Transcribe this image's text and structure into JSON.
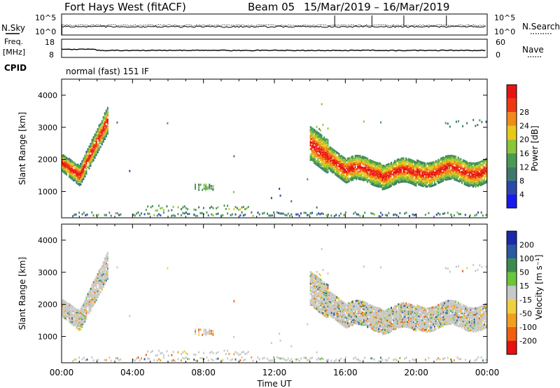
{
  "header": {
    "station": "Fort Hays West (fitACF)",
    "beam": "Beam 05",
    "dates": "15/Mar/2019 – 16/Mar/2019"
  },
  "strip1": {
    "left_label": "N.Sky",
    "left_ticks": [
      "10^5",
      "10^0"
    ],
    "right_label": "N.Search",
    "right_ticks": [
      "10^5",
      "10^0"
    ]
  },
  "strip2": {
    "left_label_top": "Freq.",
    "left_label_unit": "[MHz]",
    "left_ticks": [
      "18",
      "8"
    ],
    "right_label": "Nave",
    "right_ticks": [
      "60",
      "0"
    ]
  },
  "cpid": {
    "label": "CPID",
    "mode": "normal (fast) 151 IF"
  },
  "colors": {
    "power": [
      "#1a1aee",
      "#2a4aa8",
      "#3c7a6c",
      "#4a9a52",
      "#8cc43a",
      "#e8c81a",
      "#f08a1a",
      "#ee3a12",
      "#e81414"
    ],
    "velocity": [
      "#1a2aa8",
      "#2a5aa0",
      "#3c8a50",
      "#6ac63a",
      "#c8c8c8",
      "#f0d040",
      "#f0a020",
      "#f06010",
      "#e81010"
    ]
  },
  "chart_data": [
    {
      "type": "heatmap",
      "parameter": "power",
      "x_ticks": [
        "00:00",
        "04:00",
        "08:00",
        "12:00",
        "16:00",
        "20:00",
        "00:00"
      ],
      "xlim_hours": [
        0,
        24
      ],
      "ylabel": "Slant Range [km]",
      "y_ticks": [
        1000,
        2000,
        3000,
        4000
      ],
      "ylim": [
        180,
        4500
      ],
      "colorbar": {
        "label": "Power [dB]",
        "ticks": [
          4,
          8,
          12,
          16,
          20,
          24,
          28
        ],
        "range": [
          0,
          30
        ]
      },
      "regions": [
        {
          "t0": 0.0,
          "t1": 2.6,
          "r_center_start": 1900,
          "r_center_min": 1500,
          "t_min": 1.0,
          "r_center_end": 3200,
          "level": 26
        },
        {
          "t0": 14.0,
          "t1": 24.0,
          "r_center_start": 2500,
          "r_center_min": 1550,
          "level": 24
        },
        {
          "t0": 7.5,
          "t1": 8.5,
          "r_center": 1150,
          "level": 10
        },
        {
          "t0": 4.5,
          "t1": 10.5,
          "r_center": 450,
          "level": 12
        }
      ]
    },
    {
      "type": "heatmap",
      "parameter": "velocity",
      "x_ticks": [
        "00:00",
        "04:00",
        "08:00",
        "12:00",
        "16:00",
        "20:00",
        "00:00"
      ],
      "xlim_hours": [
        0,
        24
      ],
      "xlabel": "Time UT",
      "ylabel": "Slant Range [km]",
      "y_ticks": [
        1000,
        2000,
        3000,
        4000
      ],
      "ylim": [
        180,
        4500
      ],
      "colorbar": {
        "label": "Velocity [m s^-1]",
        "ticks": [
          200,
          100,
          50,
          15,
          -15,
          -50,
          -100,
          -200
        ],
        "range": [
          -250,
          250
        ]
      }
    }
  ]
}
